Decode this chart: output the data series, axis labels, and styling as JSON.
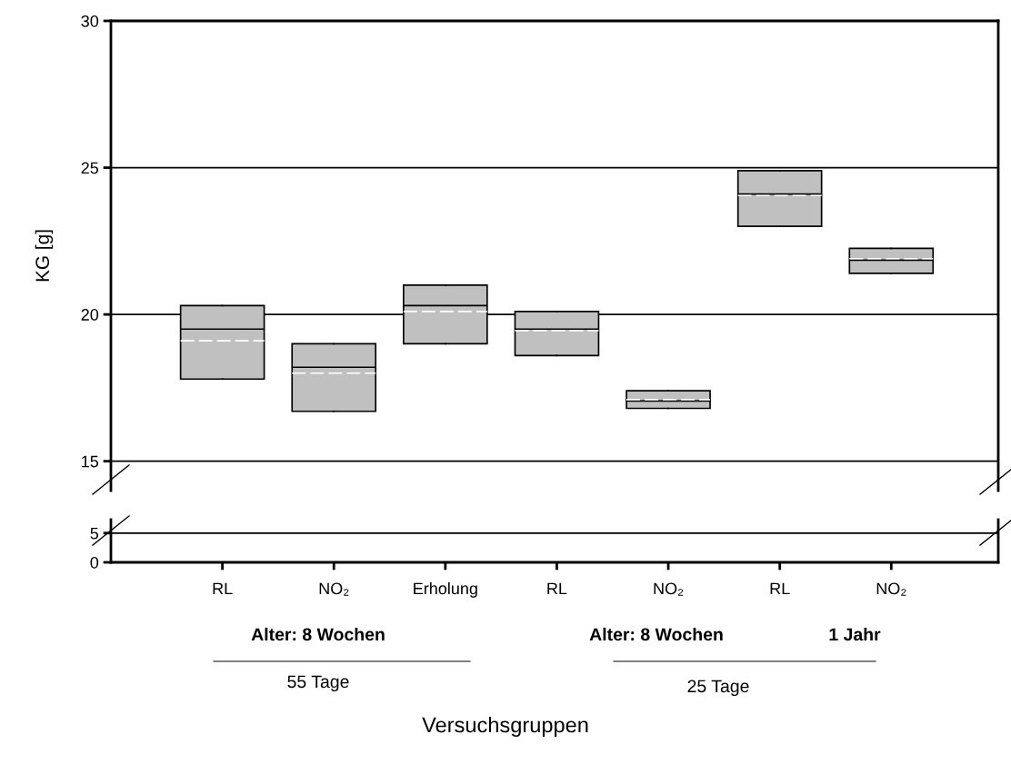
{
  "chart_data": [
    {
      "type": "box",
      "ylabel": "KG [g]",
      "categories": [
        "RL",
        "NO₂",
        "Erholung",
        "RL",
        "NO₂",
        "RL",
        "NO₂"
      ],
      "color": "#c0c0c0",
      "boxes": [
        {
          "low": 17.8,
          "q1": 17.8,
          "median": 19.5,
          "q3": 20.3,
          "high": 20.3,
          "mean": 19.1
        },
        {
          "low": 16.7,
          "q1": 16.7,
          "median": 18.2,
          "q3": 19.0,
          "high": 19.0,
          "mean": 18.0
        },
        {
          "low": 19.0,
          "q1": 19.0,
          "median": 20.3,
          "q3": 21.0,
          "high": 21.0,
          "mean": 20.1
        },
        {
          "low": 18.6,
          "q1": 18.6,
          "median": 19.5,
          "q3": 20.1,
          "high": 20.1,
          "mean": 19.45
        },
        {
          "low": 16.8,
          "q1": 16.8,
          "median": 17.05,
          "q3": 17.4,
          "high": 17.4,
          "mean": 17.1
        },
        {
          "low": 23.0,
          "q1": 23.0,
          "median": 24.1,
          "q3": 24.9,
          "high": 24.9,
          "mean": 24.05
        },
        {
          "low": 21.4,
          "q1": 21.4,
          "median": 21.85,
          "q3": 22.25,
          "high": 22.25,
          "mean": 21.9
        }
      ],
      "ylim": [
        14,
        30
      ],
      "yticks": [
        15,
        20,
        25,
        30
      ],
      "grid": "y"
    },
    {
      "type": "box",
      "xlabel": "Versuchsgruppen",
      "categories": [
        null,
        null,
        null,
        null,
        null,
        null,
        null
      ],
      "ylim": [
        0,
        7.3
      ],
      "yticks": [
        0,
        5
      ],
      "grid": "y",
      "tick_labels": "y",
      "annotations": [
        "Alter: 8 Wochen",
        "55 Tage",
        "Alter: 8 Wochen",
        "1 Jahr",
        "25 Tage"
      ]
    }
  ]
}
